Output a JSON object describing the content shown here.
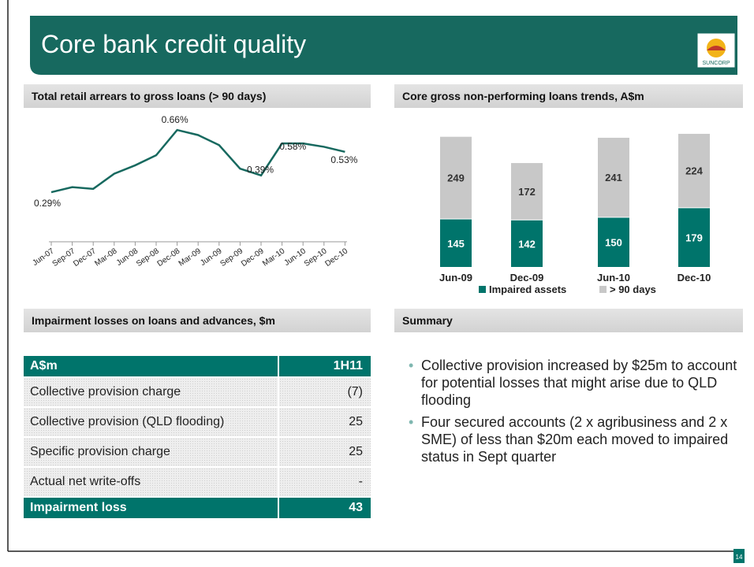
{
  "header": {
    "title": "Core bank credit quality",
    "logo": "SUNCORP"
  },
  "chart_data": [
    {
      "type": "line",
      "title": "Total retail arrears to gross loans (> 90 days)",
      "categories": [
        "Jun-07",
        "Sep-07",
        "Dec-07",
        "Mar-08",
        "Jun-08",
        "Sep-08",
        "Dec-08",
        "Mar-09",
        "Jun-09",
        "Sep-09",
        "Dec-09",
        "Mar-10",
        "Jun-10",
        "Sep-10",
        "Dec-10"
      ],
      "series": [
        {
          "name": "Total retail arrears",
          "color": "#17695f",
          "values": [
            0.29,
            0.32,
            0.31,
            0.4,
            0.45,
            0.51,
            0.66,
            0.63,
            0.57,
            0.43,
            0.39,
            0.58,
            0.58,
            0.56,
            0.53
          ],
          "value_labels": [
            "0.29%",
            null,
            null,
            null,
            null,
            null,
            "0.66%",
            null,
            null,
            null,
            "0.39%",
            null,
            "0.58%",
            null,
            "0.53%"
          ]
        }
      ]
    },
    {
      "type": "stacked_bar",
      "title": "Core gross non-performing loans trends, A$m",
      "categories": [
        "Jun-09",
        "Dec-09",
        "Jun-10",
        "Dec-10"
      ],
      "series": [
        {
          "name": "Impaired assets",
          "color": "#00746b",
          "values": [
            145,
            142,
            150,
            179
          ]
        },
        {
          "name": "> 90 days",
          "color": "#c8c8c8",
          "values": [
            249,
            172,
            241,
            224
          ]
        }
      ]
    }
  ],
  "table": {
    "title": "Impairment losses on loans and advances, $m",
    "header": [
      "A$m",
      "1H11"
    ],
    "rows": [
      [
        "Collective provision charge",
        "(7)"
      ],
      [
        "Collective provision (QLD flooding)",
        "25"
      ],
      [
        "Specific provision charge",
        "25"
      ],
      [
        "Actual net write-offs",
        "-"
      ]
    ],
    "total": [
      "Impairment loss",
      "43"
    ]
  },
  "summary": {
    "title": "Summary",
    "bullets": [
      "Collective provision increased by $25m to account for potential losses that might arise due to QLD flooding",
      "Four secured accounts (2 x agribusiness and 2 x SME) of less than $20m each moved to impaired status in Sept quarter"
    ]
  },
  "page_number": "14"
}
